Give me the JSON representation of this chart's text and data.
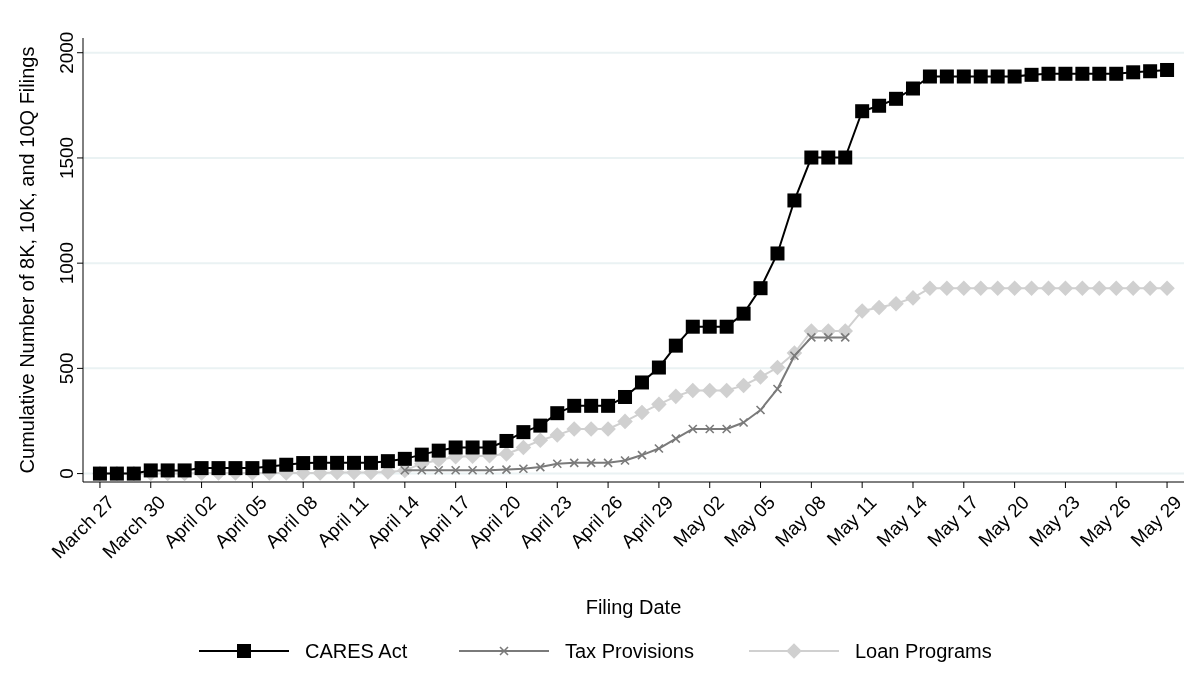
{
  "chart_data": {
    "type": "line",
    "xlabel": "Filing Date",
    "ylabel": "Cumulative Number of 8K, 10K, and 10Q Filings",
    "x": [
      "--03-27",
      "--03-28",
      "--03-29",
      "--03-30",
      "--03-31",
      "--04-01",
      "--04-02",
      "--04-03",
      "--04-04",
      "--04-05",
      "--04-06",
      "--04-07",
      "--04-08",
      "--04-09",
      "--04-10",
      "--04-11",
      "--04-12",
      "--04-13",
      "--04-14",
      "--04-15",
      "--04-16",
      "--04-17",
      "--04-18",
      "--04-19",
      "--04-20",
      "--04-21",
      "--04-22",
      "--04-23",
      "--04-24",
      "--04-25",
      "--04-26",
      "--04-27",
      "--04-28",
      "--04-29",
      "--04-30",
      "--05-01",
      "--05-02",
      "--05-03",
      "--05-04",
      "--05-05",
      "--05-06",
      "--05-07",
      "--05-08",
      "--05-09",
      "--05-10",
      "--05-11",
      "--05-12",
      "--05-13",
      "--05-14",
      "--05-15",
      "--05-16",
      "--05-17",
      "--05-18",
      "--05-19",
      "--05-20",
      "--05-21",
      "--05-22",
      "--05-23",
      "--05-24",
      "--05-25",
      "--05-26",
      "--05-27",
      "--05-28",
      "--05-29"
    ],
    "series": [
      {
        "name": "CARES Act",
        "color": "#000000",
        "marker": "square",
        "values": [
          0,
          0,
          0,
          15,
          15,
          15,
          26,
          26,
          26,
          26,
          34,
          42,
          50,
          51,
          51,
          51,
          51,
          59,
          70,
          90,
          109,
          124,
          124,
          124,
          155,
          197,
          228,
          287,
          322,
          322,
          322,
          364,
          433,
          504,
          608,
          698,
          698,
          698,
          760,
          881,
          1046,
          1298,
          1502,
          1502,
          1502,
          1722,
          1748,
          1781,
          1830,
          1887,
          1887,
          1887,
          1887,
          1887,
          1887,
          1895,
          1900,
          1900,
          1900,
          1900,
          1900,
          1907,
          1912,
          1918
        ]
      },
      {
        "name": "Tax Provisions",
        "color": "#7a7a7a",
        "marker": "cross",
        "values": [
          null,
          null,
          null,
          null,
          null,
          null,
          null,
          null,
          null,
          null,
          null,
          null,
          null,
          null,
          null,
          null,
          null,
          null,
          16,
          16,
          16,
          16,
          16,
          16,
          19,
          23,
          31,
          47,
          51,
          51,
          51,
          62,
          88,
          119,
          166,
          212,
          212,
          212,
          243,
          302,
          402,
          560,
          647,
          647,
          647,
          null,
          null,
          null,
          null,
          null,
          null,
          null,
          null,
          null,
          null,
          null,
          null,
          null,
          null,
          null,
          null,
          null,
          null,
          null
        ]
      },
      {
        "name": "Loan Programs",
        "color": "#d0d0d0",
        "marker": "diamond",
        "values": [
          0,
          0,
          0,
          0,
          0,
          0,
          3,
          3,
          3,
          3,
          3,
          3,
          3,
          3,
          5,
          5,
          5,
          8,
          15,
          47,
          65,
          80,
          82,
          85,
          93,
          124,
          158,
          183,
          212,
          212,
          212,
          248,
          290,
          329,
          367,
          395,
          395,
          395,
          419,
          459,
          504,
          573,
          677,
          677,
          677,
          773,
          789,
          807,
          835,
          881,
          881,
          881,
          881,
          881,
          881,
          881,
          881,
          881,
          881,
          881,
          881,
          881,
          881,
          881
        ]
      }
    ],
    "xlim": [
      "--03-26",
      "--05-30"
    ],
    "xticks": [
      {
        "value": "--03-27",
        "label": "March 27"
      },
      {
        "value": "--03-30",
        "label": "March 30"
      },
      {
        "value": "--04-02",
        "label": "April 02"
      },
      {
        "value": "--04-05",
        "label": "April 05"
      },
      {
        "value": "--04-08",
        "label": "April 08"
      },
      {
        "value": "--04-11",
        "label": "April 11"
      },
      {
        "value": "--04-14",
        "label": "April 14"
      },
      {
        "value": "--04-17",
        "label": "April 17"
      },
      {
        "value": "--04-20",
        "label": "April 20"
      },
      {
        "value": "--04-23",
        "label": "April 23"
      },
      {
        "value": "--04-26",
        "label": "April 26"
      },
      {
        "value": "--04-29",
        "label": "April 29"
      },
      {
        "value": "--05-02",
        "label": "May 02"
      },
      {
        "value": "--05-05",
        "label": "May 05"
      },
      {
        "value": "--05-08",
        "label": "May 08"
      },
      {
        "value": "--05-11",
        "label": "May 11"
      },
      {
        "value": "--05-14",
        "label": "May 14"
      },
      {
        "value": "--05-17",
        "label": "May 17"
      },
      {
        "value": "--05-20",
        "label": "May 20"
      },
      {
        "value": "--05-23",
        "label": "May 23"
      },
      {
        "value": "--05-26",
        "label": "May 26"
      },
      {
        "value": "--05-29",
        "label": "May 29"
      }
    ],
    "ylim": [
      -40,
      2070
    ],
    "yticks": [
      0,
      500,
      1000,
      1500,
      2000
    ],
    "grid": "y",
    "legend": "bottom",
    "line_style": "solid"
  }
}
